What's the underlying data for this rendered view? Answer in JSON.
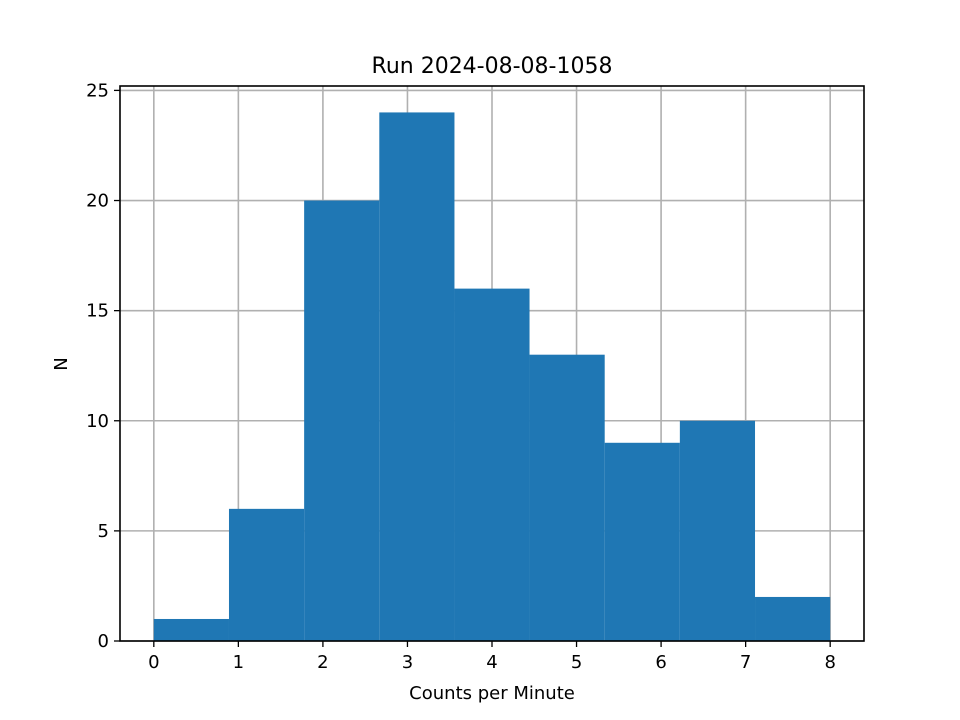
{
  "chart_data": {
    "type": "bar",
    "subtype": "histogram",
    "title": "Run 2024-08-08-1058",
    "xlabel": "Counts per Minute",
    "ylabel": "N",
    "bin_edges": [
      0,
      0.889,
      1.778,
      2.667,
      3.556,
      4.444,
      5.333,
      6.222,
      7.111,
      8
    ],
    "values": [
      1,
      6,
      20,
      24,
      16,
      13,
      9,
      10,
      2
    ],
    "xlim": [
      -0.4,
      8.4
    ],
    "ylim": [
      0,
      25.2
    ],
    "xticks": [
      0,
      1,
      2,
      3,
      4,
      5,
      6,
      7,
      8
    ],
    "yticks": [
      0,
      5,
      10,
      15,
      20,
      25
    ],
    "grid": true,
    "bar_color": "#1f77b4"
  }
}
